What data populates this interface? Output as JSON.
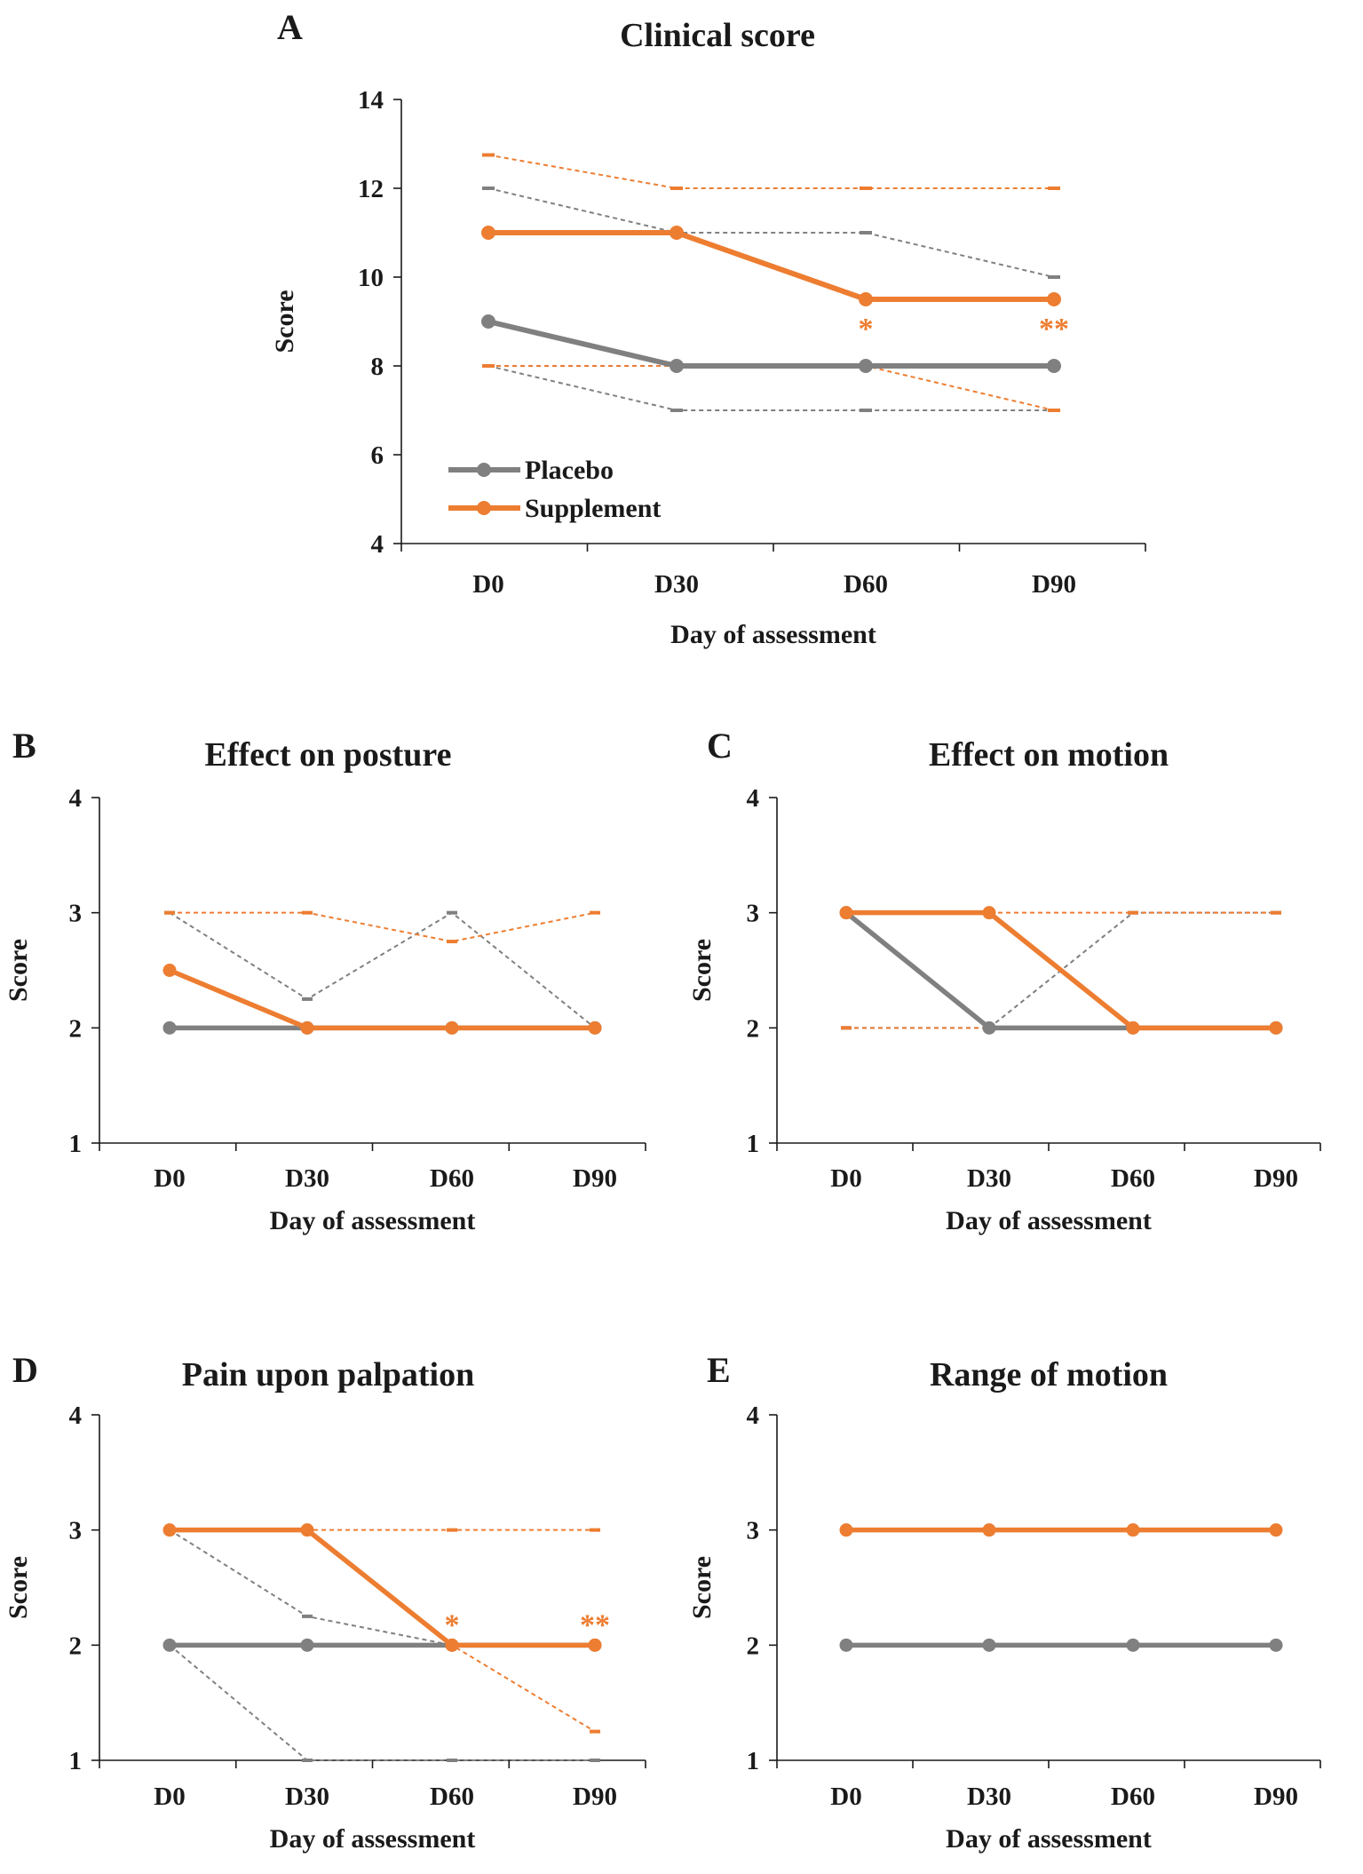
{
  "colors": {
    "placebo": "#808080",
    "supplement": "#ed7d31",
    "axis": "#1a1a1a"
  },
  "legend": [
    {
      "name": "Placebo",
      "color": "#808080"
    },
    {
      "name": "Supplement",
      "color": "#ed7d31"
    }
  ],
  "chart_data": [
    {
      "panel": "A",
      "type": "line",
      "title": "Clinical score",
      "xlabel": "Day of assessment",
      "ylabel": "Score",
      "categories": [
        "D0",
        "D30",
        "D60",
        "D90"
      ],
      "ylim": [
        4,
        14
      ],
      "yticks": [
        4,
        6,
        8,
        10,
        12,
        14
      ],
      "legend_position": "bottom-left",
      "series": [
        {
          "name": "Placebo",
          "color": "#808080",
          "values": [
            9,
            8,
            8,
            8
          ],
          "upper": [
            12,
            11,
            11,
            10
          ],
          "lower": [
            8,
            7,
            7,
            7
          ]
        },
        {
          "name": "Supplement",
          "color": "#ed7d31",
          "values": [
            11,
            11,
            9.5,
            9.5
          ],
          "upper": [
            12.75,
            12,
            12,
            12
          ],
          "lower": [
            8,
            8,
            8,
            7
          ]
        }
      ],
      "annotations": [
        {
          "category": "D60",
          "text": "*",
          "color": "#ed7d31"
        },
        {
          "category": "D90",
          "text": "**",
          "color": "#ed7d31"
        }
      ]
    },
    {
      "panel": "B",
      "type": "line",
      "title": "Effect on posture",
      "xlabel": "Day of assessment",
      "ylabel": "Score",
      "categories": [
        "D0",
        "D30",
        "D60",
        "D90"
      ],
      "ylim": [
        1,
        4
      ],
      "yticks": [
        1,
        2,
        3,
        4
      ],
      "series": [
        {
          "name": "Placebo",
          "color": "#808080",
          "values": [
            2,
            2,
            2,
            2
          ],
          "upper": [
            3,
            2.25,
            3,
            2
          ],
          "lower": [
            2,
            2,
            2,
            2
          ]
        },
        {
          "name": "Supplement",
          "color": "#ed7d31",
          "values": [
            2.5,
            2,
            2,
            2
          ],
          "upper": [
            3,
            3,
            2.75,
            3
          ],
          "lower": [
            2,
            2,
            2,
            2
          ]
        }
      ],
      "annotations": []
    },
    {
      "panel": "C",
      "type": "line",
      "title": "Effect on motion",
      "xlabel": "Day of assessment",
      "ylabel": "Score",
      "categories": [
        "D0",
        "D30",
        "D60",
        "D90"
      ],
      "ylim": [
        1,
        4
      ],
      "yticks": [
        1,
        2,
        3,
        4
      ],
      "series": [
        {
          "name": "Placebo",
          "color": "#808080",
          "values": [
            3,
            2,
            2,
            2
          ],
          "upper": [
            3,
            2,
            3,
            3
          ],
          "lower": [
            2,
            2,
            2,
            2
          ]
        },
        {
          "name": "Supplement",
          "color": "#ed7d31",
          "values": [
            3,
            3,
            2,
            2
          ],
          "upper": [
            3,
            3,
            3,
            3
          ],
          "lower": [
            2,
            2,
            2,
            2
          ]
        }
      ],
      "annotations": []
    },
    {
      "panel": "D",
      "type": "line",
      "title": "Pain upon palpation",
      "xlabel": "Day of assessment",
      "ylabel": "Score",
      "categories": [
        "D0",
        "D30",
        "D60",
        "D90"
      ],
      "ylim": [
        1,
        4
      ],
      "yticks": [
        1,
        2,
        3,
        4
      ],
      "series": [
        {
          "name": "Placebo",
          "color": "#808080",
          "values": [
            2,
            2,
            2,
            2
          ],
          "upper": [
            3,
            2.25,
            2,
            2
          ],
          "lower": [
            2,
            1,
            1,
            1
          ]
        },
        {
          "name": "Supplement",
          "color": "#ed7d31",
          "values": [
            3,
            3,
            2,
            2
          ],
          "upper": [
            3,
            3,
            3,
            3
          ],
          "lower": [
            3,
            3,
            2,
            1.25
          ]
        }
      ],
      "annotations": [
        {
          "category": "D60",
          "text": "*",
          "color": "#ed7d31"
        },
        {
          "category": "D90",
          "text": "**",
          "color": "#ed7d31"
        }
      ]
    },
    {
      "panel": "E",
      "type": "line",
      "title": "Range of motion",
      "xlabel": "Day of assessment",
      "ylabel": "Score",
      "categories": [
        "D0",
        "D30",
        "D60",
        "D90"
      ],
      "ylim": [
        1,
        4
      ],
      "yticks": [
        1,
        2,
        3,
        4
      ],
      "series": [
        {
          "name": "Placebo",
          "color": "#808080",
          "values": [
            2,
            2,
            2,
            2
          ],
          "upper": [
            2,
            2,
            2,
            2
          ],
          "lower": [
            2,
            2,
            2,
            2
          ]
        },
        {
          "name": "Supplement",
          "color": "#ed7d31",
          "values": [
            3,
            3,
            3,
            3
          ],
          "upper": [
            3,
            3,
            3,
            3
          ],
          "lower": [
            3,
            3,
            3,
            3
          ]
        }
      ],
      "annotations": []
    }
  ]
}
